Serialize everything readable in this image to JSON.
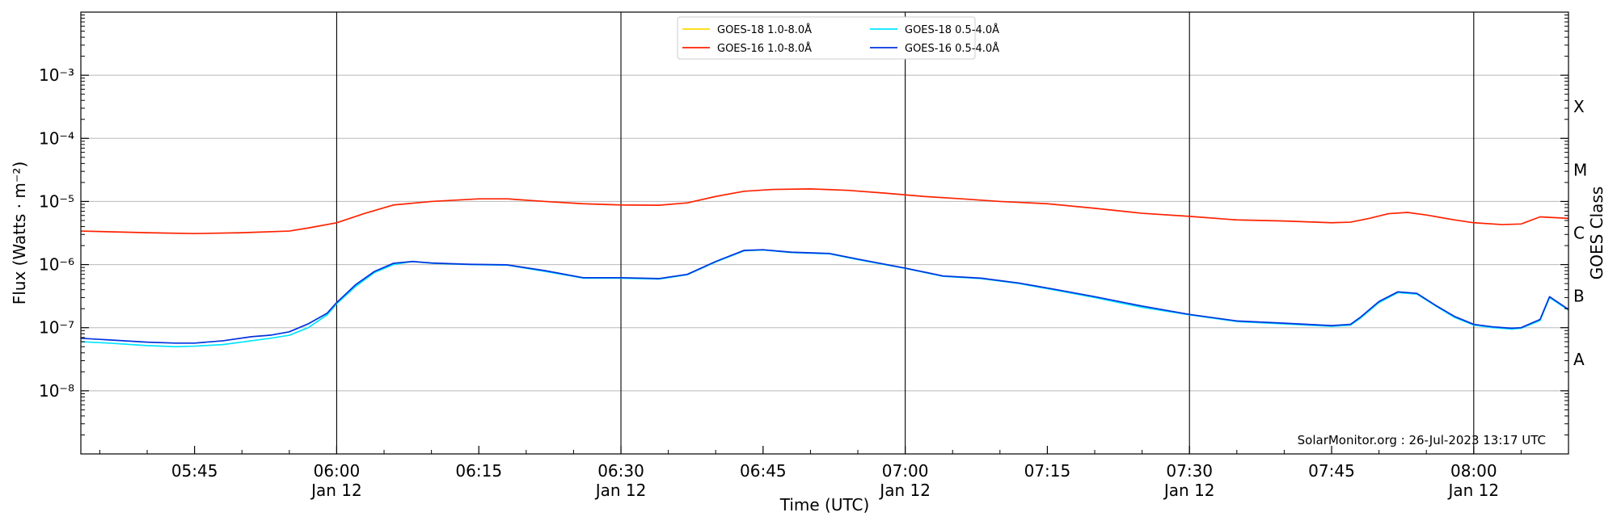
{
  "chart_data": {
    "type": "line",
    "xlabel": "Time (UTC)",
    "ylabel": "Flux (Watts · m⁻²)",
    "y2label": "GOES Class",
    "yscale": "log",
    "ylim": [
      1e-09,
      0.01
    ],
    "xlim": [
      "05:33",
      "08:10"
    ],
    "x_ticks": [
      {
        "time": "05:45",
        "label": "05:45",
        "sub": ""
      },
      {
        "time": "06:00",
        "label": "06:00",
        "sub": "Jan 12"
      },
      {
        "time": "06:15",
        "label": "06:15",
        "sub": ""
      },
      {
        "time": "06:30",
        "label": "06:30",
        "sub": "Jan 12"
      },
      {
        "time": "06:45",
        "label": "06:45",
        "sub": ""
      },
      {
        "time": "07:00",
        "label": "07:00",
        "sub": "Jan 12"
      },
      {
        "time": "07:15",
        "label": "07:15",
        "sub": ""
      },
      {
        "time": "07:30",
        "label": "07:30",
        "sub": "Jan 12"
      },
      {
        "time": "07:45",
        "label": "07:45",
        "sub": ""
      },
      {
        "time": "08:00",
        "label": "08:00",
        "sub": "Jan 12"
      }
    ],
    "y_ticks": [
      {
        "exp": -8,
        "label": "10⁻⁸"
      },
      {
        "exp": -7,
        "label": "10⁻⁷"
      },
      {
        "exp": -6,
        "label": "10⁻⁶"
      },
      {
        "exp": -5,
        "label": "10⁻⁵"
      },
      {
        "exp": -4,
        "label": "10⁻⁴"
      },
      {
        "exp": -3,
        "label": "10⁻³"
      }
    ],
    "goes_classes": [
      {
        "label": "A",
        "exp": -7.5
      },
      {
        "label": "B",
        "exp": -6.5
      },
      {
        "label": "C",
        "exp": -5.5
      },
      {
        "label": "M",
        "exp": -4.5
      },
      {
        "label": "X",
        "exp": -3.5
      }
    ],
    "vertical_lines": [
      "06:00",
      "06:30",
      "07:00",
      "07:30",
      "08:00"
    ],
    "grid": "horizontal",
    "legend_position": "top-center",
    "watermark": "SolarMonitor.org : 26-Jul-2023 13:17 UTC",
    "series": [
      {
        "name": "GOES-18 1.0-8.0Å",
        "color": "#FFD700",
        "legend_only": true,
        "x": [],
        "y": []
      },
      {
        "name": "GOES-16 1.0-8.0Å",
        "color": "#FF2200",
        "x": [
          "05:33",
          "05:40",
          "05:45",
          "05:50",
          "05:55",
          "05:57",
          "06:00",
          "06:03",
          "06:06",
          "06:10",
          "06:15",
          "06:18",
          "06:22",
          "06:26",
          "06:30",
          "06:34",
          "06:37",
          "06:40",
          "06:43",
          "06:46",
          "06:50",
          "06:54",
          "06:58",
          "07:02",
          "07:06",
          "07:10",
          "07:15",
          "07:20",
          "07:25",
          "07:30",
          "07:35",
          "07:40",
          "07:45",
          "07:47",
          "07:49",
          "07:51",
          "07:53",
          "07:55",
          "07:58",
          "08:00",
          "08:03",
          "08:05",
          "08:07",
          "08:10"
        ],
        "y": [
          3.4e-06,
          3.2e-06,
          3.1e-06,
          3.2e-06,
          3.4e-06,
          3.8e-06,
          4.6e-06,
          6.5e-06,
          8.8e-06,
          1e-05,
          1.1e-05,
          1.1e-05,
          1e-05,
          9.2e-06,
          8.8e-06,
          8.7e-06,
          9.5e-06,
          1.2e-05,
          1.45e-05,
          1.55e-05,
          1.58e-05,
          1.5e-05,
          1.35e-05,
          1.2e-05,
          1.1e-05,
          1e-05,
          9.2e-06,
          7.8e-06,
          6.5e-06,
          5.8e-06,
          5.1e-06,
          4.9e-06,
          4.6e-06,
          4.7e-06,
          5.4e-06,
          6.4e-06,
          6.7e-06,
          6.1e-06,
          5.1e-06,
          4.6e-06,
          4.3e-06,
          4.4e-06,
          5.7e-06,
          5.4e-06
        ]
      },
      {
        "name": "GOES-18 0.5-4.0Å",
        "color": "#00E5FF",
        "x": [
          "05:33",
          "05:36",
          "05:40",
          "05:43",
          "05:45",
          "05:48",
          "05:51",
          "05:53",
          "05:55",
          "05:57",
          "05:59",
          "06:00",
          "06:02",
          "06:04",
          "06:06",
          "06:08",
          "06:10",
          "06:14",
          "06:18",
          "06:22",
          "06:26",
          "06:30",
          "06:34",
          "06:37",
          "06:40",
          "06:43",
          "06:45",
          "06:48",
          "06:52",
          "06:55",
          "07:00",
          "07:04",
          "07:08",
          "07:12",
          "07:16",
          "07:20",
          "07:25",
          "07:30",
          "07:35",
          "07:40",
          "07:45",
          "07:47",
          "07:48",
          "07:50",
          "07:52",
          "07:54",
          "07:56",
          "07:58",
          "08:00",
          "08:02",
          "08:04",
          "08:05",
          "08:07",
          "08:08",
          "08:10"
        ],
        "y": [
          6e-08,
          5.7e-08,
          5.2e-08,
          5e-08,
          5.1e-08,
          5.4e-08,
          6.2e-08,
          6.8e-08,
          7.6e-08,
          1e-07,
          1.6e-07,
          2.4e-07,
          4.5e-07,
          7.5e-07,
          1e-06,
          1.12e-06,
          1.05e-06,
          1e-06,
          9.8e-07,
          7.8e-07,
          6.1e-07,
          6.1e-07,
          5.9e-07,
          6.9e-07,
          1.1e-06,
          1.65e-06,
          1.7e-06,
          1.55e-06,
          1.48e-06,
          1.2e-06,
          8.7e-07,
          6.5e-07,
          6e-07,
          5e-07,
          3.9e-07,
          3e-07,
          2.1e-07,
          1.6e-07,
          1.25e-07,
          1.15e-07,
          1.05e-07,
          1.1e-07,
          1.4e-07,
          2.5e-07,
          3.6e-07,
          3.4e-07,
          2.2e-07,
          1.45e-07,
          1.1e-07,
          1e-07,
          9.5e-08,
          9.8e-08,
          1.3e-07,
          3e-07,
          1.9e-07
        ]
      },
      {
        "name": "GOES-16 0.5-4.0Å",
        "color": "#0033DD",
        "x": [
          "05:33",
          "05:36",
          "05:40",
          "05:43",
          "05:45",
          "05:48",
          "05:51",
          "05:53",
          "05:55",
          "05:57",
          "05:59",
          "06:00",
          "06:02",
          "06:04",
          "06:06",
          "06:08",
          "06:10",
          "06:14",
          "06:18",
          "06:22",
          "06:26",
          "06:30",
          "06:34",
          "06:37",
          "06:40",
          "06:43",
          "06:45",
          "06:48",
          "06:52",
          "06:55",
          "07:00",
          "07:04",
          "07:08",
          "07:12",
          "07:16",
          "07:20",
          "07:25",
          "07:30",
          "07:35",
          "07:40",
          "07:45",
          "07:47",
          "07:48",
          "07:50",
          "07:52",
          "07:54",
          "07:56",
          "07:58",
          "08:00",
          "08:02",
          "08:04",
          "08:05",
          "08:07",
          "08:08",
          "08:10"
        ],
        "y": [
          6.8e-08,
          6.4e-08,
          5.9e-08,
          5.7e-08,
          5.7e-08,
          6.2e-08,
          7.2e-08,
          7.6e-08,
          8.6e-08,
          1.15e-07,
          1.7e-07,
          2.5e-07,
          4.8e-07,
          7.8e-07,
          1.05e-06,
          1.12e-06,
          1.06e-06,
          1.01e-06,
          9.9e-07,
          8e-07,
          6.2e-07,
          6.2e-07,
          6e-07,
          7e-07,
          1.12e-06,
          1.68e-06,
          1.72e-06,
          1.57e-06,
          1.5e-06,
          1.22e-06,
          8.8e-07,
          6.6e-07,
          6.1e-07,
          5.1e-07,
          4e-07,
          3.1e-07,
          2.2e-07,
          1.62e-07,
          1.28e-07,
          1.18e-07,
          1.08e-07,
          1.13e-07,
          1.45e-07,
          2.6e-07,
          3.7e-07,
          3.5e-07,
          2.25e-07,
          1.5e-07,
          1.13e-07,
          1.03e-07,
          9.8e-08,
          1e-07,
          1.35e-07,
          3.1e-07,
          1.95e-07
        ]
      }
    ]
  }
}
